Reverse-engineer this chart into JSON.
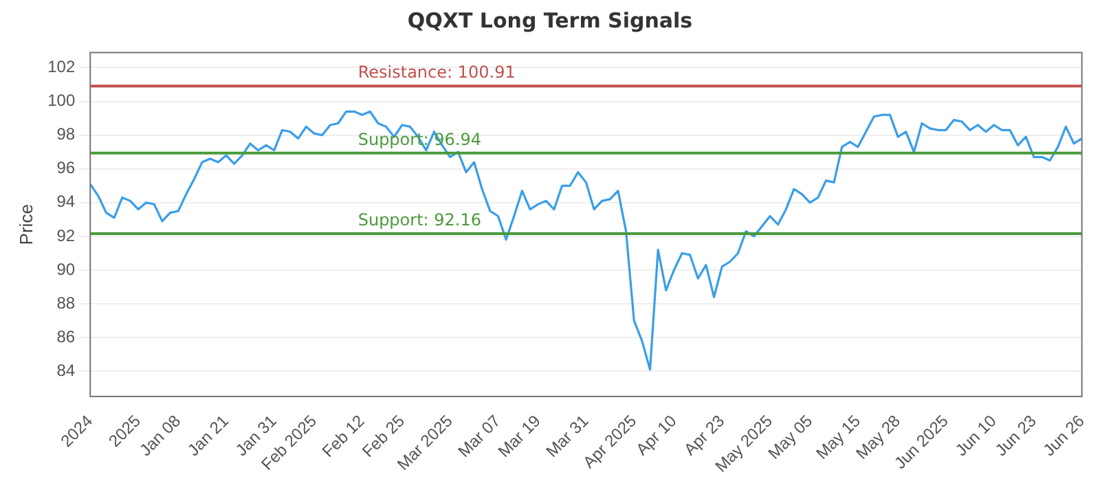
{
  "chart_data": {
    "type": "line",
    "title": "QQXT Long Term Signals",
    "ylabel": "Price",
    "categories": [
      "2024",
      null,
      null,
      null,
      null,
      null,
      "2025",
      null,
      null,
      null,
      null,
      "Jan 08",
      null,
      null,
      null,
      null,
      null,
      "Jan 21",
      null,
      null,
      null,
      null,
      null,
      "Jan 31",
      null,
      null,
      null,
      null,
      "Feb 2025",
      null,
      null,
      null,
      null,
      null,
      "Feb 12",
      null,
      null,
      null,
      null,
      "Feb 25",
      null,
      null,
      null,
      null,
      null,
      "Mar 2025",
      null,
      null,
      null,
      null,
      null,
      "Mar 07",
      null,
      null,
      null,
      null,
      "Mar 19",
      null,
      null,
      null,
      null,
      null,
      "Mar 31",
      null,
      null,
      null,
      null,
      null,
      "Apr 2025",
      null,
      null,
      null,
      null,
      "Apr 10",
      null,
      null,
      null,
      null,
      null,
      "Apr 23",
      null,
      null,
      null,
      null,
      null,
      "May 2025",
      null,
      null,
      null,
      null,
      "May 05",
      null,
      null,
      null,
      null,
      null,
      "May 15",
      null,
      null,
      null,
      null,
      "May 28",
      null,
      null,
      null,
      null,
      null,
      "Jun 2025",
      null,
      null,
      null,
      null,
      null,
      "Jun 10",
      null,
      null,
      null,
      null,
      "Jun 23",
      null,
      null,
      null,
      null,
      null,
      "Jun 26"
    ],
    "series": [
      {
        "color": "#3a9ee8",
        "values": [
          95.1,
          94.4,
          93.4,
          93.1,
          94.3,
          94.1,
          93.6,
          94.0,
          93.9,
          92.9,
          93.4,
          93.5,
          94.5,
          95.4,
          96.4,
          96.6,
          96.4,
          96.8,
          96.3,
          96.8,
          97.5,
          97.1,
          97.4,
          97.1,
          98.3,
          98.2,
          97.8,
          98.5,
          98.1,
          98.0,
          98.6,
          98.7,
          99.4,
          99.4,
          99.2,
          99.4,
          98.7,
          98.5,
          97.9,
          98.6,
          98.5,
          97.9,
          97.1,
          98.2,
          97.4,
          96.7,
          97.0,
          95.8,
          96.4,
          94.8,
          93.5,
          93.2,
          91.8,
          93.2,
          94.7,
          93.6,
          93.9,
          94.1,
          93.6,
          95.0,
          95.0,
          95.8,
          95.2,
          93.6,
          94.1,
          94.2,
          94.7,
          92.3,
          87.0,
          85.8,
          84.1,
          91.2,
          88.8,
          90.0,
          91.0,
          90.9,
          89.5,
          90.3,
          88.4,
          90.2,
          90.5,
          91.0,
          92.3,
          92.0,
          92.6,
          93.2,
          92.7,
          93.6,
          94.8,
          94.5,
          94.0,
          94.3,
          95.3,
          95.2,
          97.3,
          97.6,
          97.3,
          98.2,
          99.1,
          99.2,
          99.2,
          97.9,
          98.2,
          97.0,
          98.7,
          98.4,
          98.3,
          98.3,
          98.9,
          98.8,
          98.3,
          98.6,
          98.2,
          98.6,
          98.3,
          98.3,
          97.4,
          97.9,
          96.7,
          96.7,
          96.5,
          97.3,
          98.5,
          97.5,
          97.8
        ]
      }
    ],
    "ylim": [
      82.5,
      102.9
    ],
    "yticks": [
      84,
      86,
      88,
      90,
      92,
      94,
      96,
      98,
      100,
      102
    ],
    "grid": "y",
    "marker": "none",
    "line_style": "solid",
    "ref_lines": [
      {
        "axis": "y",
        "value": 100.91,
        "label": "Resistance: 100.91",
        "color": "#c0504d"
      },
      {
        "axis": "y",
        "value": 96.94,
        "label": "Support: 96.94",
        "color": "#4a9a3a"
      },
      {
        "axis": "y",
        "value": 92.16,
        "label": "Support: 92.16",
        "color": "#4a9a3a"
      }
    ]
  }
}
